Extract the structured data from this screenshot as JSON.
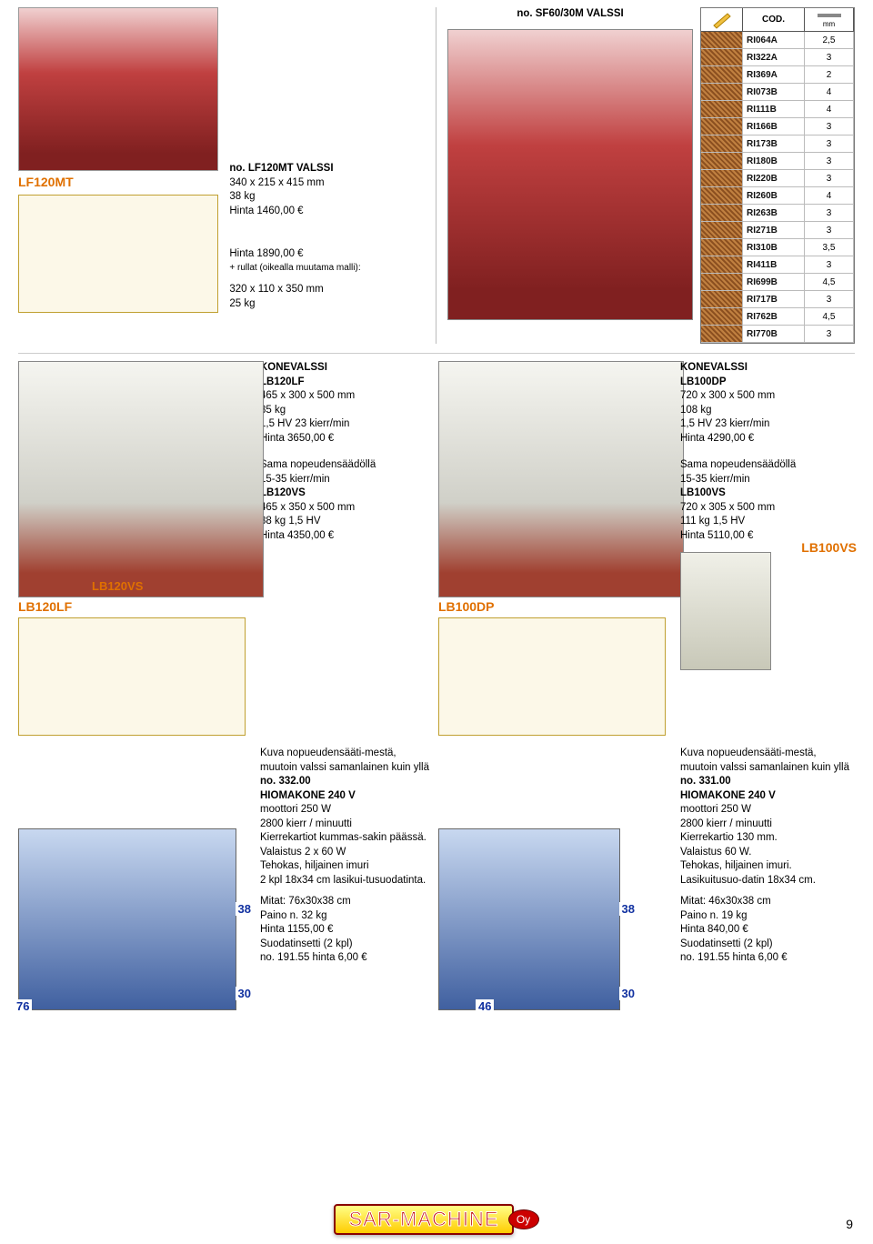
{
  "header_title": "no. SF60/30M VALSSI",
  "lf120mt": {
    "label": "LF120MT",
    "title": "no. LF120MT VALSSI",
    "dims": "340 x 215 x 415 mm",
    "weight": "38 kg",
    "price": "Hinta 1460,00 €"
  },
  "sf60": {
    "price": "Hinta 1890,00 €",
    "rollers_note": "+ rullat (oikealla muutama malli):",
    "dims": "320 x 110 x 350 mm",
    "weight": "25 kg"
  },
  "cod": {
    "head_cod": "COD.",
    "head_mm": "mm",
    "rows": [
      {
        "code": "RI064A",
        "val": "2,5"
      },
      {
        "code": "RI322A",
        "val": "3"
      },
      {
        "code": "RI369A",
        "val": "2"
      },
      {
        "code": "RI073B",
        "val": "4"
      },
      {
        "code": "RI111B",
        "val": "4"
      },
      {
        "code": "RI166B",
        "val": "3"
      },
      {
        "code": "RI173B",
        "val": "3"
      },
      {
        "code": "RI180B",
        "val": "3"
      },
      {
        "code": "RI220B",
        "val": "3"
      },
      {
        "code": "RI260B",
        "val": "4"
      },
      {
        "code": "RI263B",
        "val": "3"
      },
      {
        "code": "RI271B",
        "val": "3"
      },
      {
        "code": "RI310B",
        "val": "3,5"
      },
      {
        "code": "RI411B",
        "val": "3"
      },
      {
        "code": "RI699B",
        "val": "4,5"
      },
      {
        "code": "RI717B",
        "val": "3"
      },
      {
        "code": "RI762B",
        "val": "4,5"
      },
      {
        "code": "RI770B",
        "val": "3"
      }
    ]
  },
  "lb120lf": {
    "title": "KONEVALSSI",
    "model": "LB120LF",
    "dims": "465 x 300 x 500 mm",
    "weight": "85 kg",
    "speed": "1,5 HV 23 kierr/min",
    "price": "Hinta 3650,00 €",
    "label": "LB120LF"
  },
  "lb120vs": {
    "note": "Sama nopeudensäädöllä",
    "speed": "15-35 kierr/min",
    "model": "LB120VS",
    "dims": "465 x 350 x 500 mm",
    "weight": "88 kg  1,5 HV",
    "price": "Hinta 4350,00 €",
    "label": "LB120VS"
  },
  "lb100dp": {
    "title": "KONEVALSSI",
    "model": "LB100DP",
    "dims": "720 x 300 x 500 mm",
    "weight": "108 kg",
    "speed": "1,5 HV 23 kierr/min",
    "price": "Hinta 4290,00 €",
    "label": "LB100DP"
  },
  "lb100vs": {
    "note": "Sama nopeudensäädöllä",
    "speed": "15-35 kierr/min",
    "model": "LB100VS",
    "dims": "720 x 305 x 500 mm",
    "weight": "111 kg   1,5 HV",
    "price": "Hinta 5110,00 €",
    "label": "LB100VS"
  },
  "polisher332": {
    "intro": "Kuva nopueudensääti-mestä, muutoin valssi samanlainen kuin yllä",
    "no": "no. 332.00",
    "title": "HIOMAKONE 240 V",
    "motor": "moottori 250 W",
    "rpm": "2800 kierr / minuutti",
    "wheels": "Kierrekartiot kummas-sakin päässä.",
    "light": "Valaistus 2 x 60 W",
    "vac": "Tehokas, hiljainen imuri",
    "glass": "2 kpl 18x34 cm lasikui-tusuodatinta.",
    "dims": "Mitat: 76x30x38 cm",
    "weight": "Paino n. 32 kg",
    "price": "Hinta 1155,00 €",
    "filter": "Suodatinsetti (2 kpl)",
    "filterprice": "no. 191.55 hinta 6,00 €",
    "d76": "76",
    "d38": "38",
    "d30": "30"
  },
  "polisher331": {
    "intro": "Kuva nopueudensääti-mestä, muutoin valssi samanlainen kuin yllä",
    "no": "no. 331.00",
    "title": "HIOMAKONE 240 V",
    "motor": "moottori 250 W",
    "rpm": "2800 kierr / minuutti",
    "wheels": "Kierrekartio 130 mm.",
    "light": "Valaistus 60 W.",
    "vac": "Tehokas, hiljainen imuri.",
    "glass": "Lasikuitusuo-datin 18x34 cm.",
    "dims": "Mitat: 46x30x38 cm",
    "weight": "Paino n. 19 kg",
    "price": "Hinta 840,00 €",
    "filter": "Suodatinsetti (2 kpl)",
    "filterprice": "no. 191.55 hinta 6,00 €",
    "d46": "46",
    "d38": "38",
    "d30": "30"
  },
  "logo": "SAR-MACHINE",
  "logo_oy": "Oy",
  "page": "9"
}
